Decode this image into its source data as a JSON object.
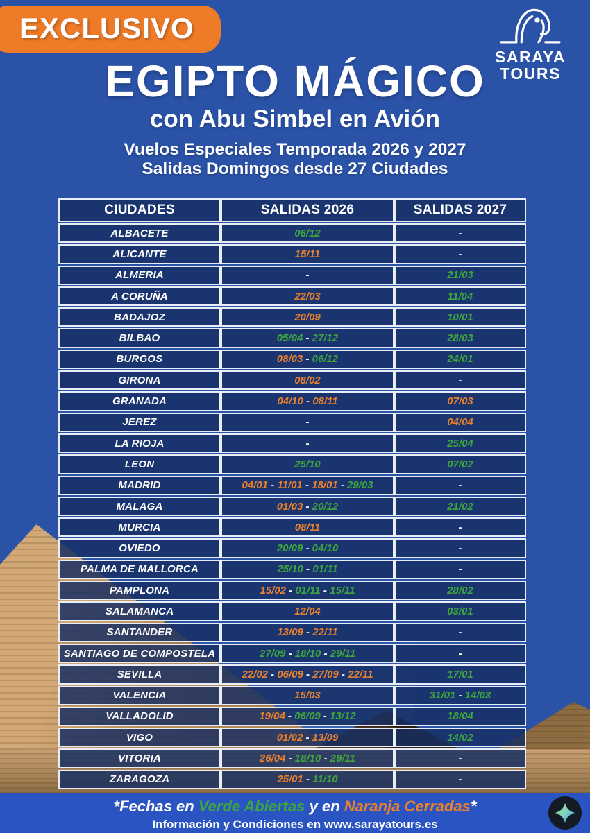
{
  "colors": {
    "background": "#2a52a7",
    "cell": "#17306a",
    "badge_orange": "#ee7b28",
    "green_open": "#3ea63c",
    "orange_closed": "#e9802e",
    "footer_blue": "#2a54c2"
  },
  "badge": {
    "label": "EXCLUSIVO"
  },
  "logo": {
    "name_line1": "SARAYA",
    "name_line2": "TOURS",
    "icon": "horus-falcon-icon"
  },
  "header": {
    "title": "EGIPTO MÁGICO",
    "subtitle": "con Abu Simbel en Avión",
    "info_line1": "Vuelos Especiales Temporada 2026 y 2027",
    "info_line2": "Salidas Domingos desde 27 Ciudades"
  },
  "table": {
    "columns": [
      "CIUDADES",
      "SALIDAS 2026",
      "SALIDAS 2027"
    ],
    "empty_marker": "-",
    "rows": [
      {
        "city": "ALBACETE",
        "s2026": [
          {
            "d": "06/12",
            "c": "green"
          }
        ],
        "s2027": []
      },
      {
        "city": "ALICANTE",
        "s2026": [
          {
            "d": "15/11",
            "c": "orange"
          }
        ],
        "s2027": []
      },
      {
        "city": "ALMERIA",
        "s2026": [],
        "s2027": [
          {
            "d": "21/03",
            "c": "green"
          }
        ]
      },
      {
        "city": "A CORUÑA",
        "s2026": [
          {
            "d": "22/03",
            "c": "orange"
          }
        ],
        "s2027": [
          {
            "d": "11/04",
            "c": "green"
          }
        ]
      },
      {
        "city": "BADAJOZ",
        "s2026": [
          {
            "d": "20/09",
            "c": "orange"
          }
        ],
        "s2027": [
          {
            "d": "10/01",
            "c": "green"
          }
        ]
      },
      {
        "city": "BILBAO",
        "s2026": [
          {
            "d": "05/04",
            "c": "green"
          },
          {
            "d": "27/12",
            "c": "green"
          }
        ],
        "s2027": [
          {
            "d": "28/03",
            "c": "green"
          }
        ]
      },
      {
        "city": "BURGOS",
        "s2026": [
          {
            "d": "08/03",
            "c": "orange"
          },
          {
            "d": "06/12",
            "c": "green"
          }
        ],
        "s2027": [
          {
            "d": "24/01",
            "c": "green"
          }
        ]
      },
      {
        "city": "GIRONA",
        "s2026": [
          {
            "d": "08/02",
            "c": "orange"
          }
        ],
        "s2027": []
      },
      {
        "city": "GRANADA",
        "s2026": [
          {
            "d": "04/10",
            "c": "orange"
          },
          {
            "d": "08/11",
            "c": "orange"
          }
        ],
        "s2027": [
          {
            "d": "07/03",
            "c": "orange"
          }
        ]
      },
      {
        "city": "JEREZ",
        "s2026": [],
        "s2027": [
          {
            "d": "04/04",
            "c": "orange"
          }
        ]
      },
      {
        "city": "LA RIOJA",
        "s2026": [],
        "s2027": [
          {
            "d": "25/04",
            "c": "green"
          }
        ]
      },
      {
        "city": "LEON",
        "s2026": [
          {
            "d": "25/10",
            "c": "green"
          }
        ],
        "s2027": [
          {
            "d": "07/02",
            "c": "green"
          }
        ]
      },
      {
        "city": "MADRID",
        "s2026": [
          {
            "d": "04/01",
            "c": "orange"
          },
          {
            "d": "11/01",
            "c": "orange"
          },
          {
            "d": "18/01",
            "c": "orange"
          },
          {
            "d": "29/03",
            "c": "green"
          }
        ],
        "s2027": []
      },
      {
        "city": "MALAGA",
        "s2026": [
          {
            "d": "01/03",
            "c": "orange"
          },
          {
            "d": "20/12",
            "c": "green"
          }
        ],
        "s2027": [
          {
            "d": "21/02",
            "c": "green"
          }
        ]
      },
      {
        "city": "MURCIA",
        "s2026": [
          {
            "d": "08/11",
            "c": "orange"
          }
        ],
        "s2027": []
      },
      {
        "city": "OVIEDO",
        "s2026": [
          {
            "d": "20/09",
            "c": "green"
          },
          {
            "d": "04/10",
            "c": "green"
          }
        ],
        "s2027": []
      },
      {
        "city": "PALMA DE MALLORCA",
        "s2026": [
          {
            "d": "25/10",
            "c": "green"
          },
          {
            "d": "01/11",
            "c": "green"
          }
        ],
        "s2027": []
      },
      {
        "city": "PAMPLONA",
        "s2026": [
          {
            "d": "15/02",
            "c": "orange"
          },
          {
            "d": "01/11",
            "c": "green"
          },
          {
            "d": "15/11",
            "c": "green"
          }
        ],
        "s2027": [
          {
            "d": "28/02",
            "c": "green"
          }
        ]
      },
      {
        "city": "SALAMANCA",
        "s2026": [
          {
            "d": "12/04",
            "c": "orange"
          }
        ],
        "s2027": [
          {
            "d": "03/01",
            "c": "green"
          }
        ]
      },
      {
        "city": "SANTANDER",
        "s2026": [
          {
            "d": "13/09",
            "c": "orange"
          },
          {
            "d": "22/11",
            "c": "orange"
          }
        ],
        "s2027": []
      },
      {
        "city": "SANTIAGO DE COMPOSTELA",
        "s2026": [
          {
            "d": "27/09",
            "c": "green"
          },
          {
            "d": "18/10",
            "c": "green"
          },
          {
            "d": "29/11",
            "c": "green"
          }
        ],
        "s2027": []
      },
      {
        "city": "SEVILLA",
        "s2026": [
          {
            "d": "22/02",
            "c": "orange"
          },
          {
            "d": "06/09",
            "c": "orange"
          },
          {
            "d": "27/09",
            "c": "orange"
          },
          {
            "d": "22/11",
            "c": "orange"
          }
        ],
        "s2027": [
          {
            "d": "17/01",
            "c": "green"
          }
        ]
      },
      {
        "city": "VALENCIA",
        "s2026": [
          {
            "d": "15/03",
            "c": "orange"
          }
        ],
        "s2027": [
          {
            "d": "31/01",
            "c": "green"
          },
          {
            "d": "14/03",
            "c": "green"
          }
        ]
      },
      {
        "city": "VALLADOLID",
        "s2026": [
          {
            "d": "19/04",
            "c": "orange"
          },
          {
            "d": "06/09",
            "c": "green"
          },
          {
            "d": "13/12",
            "c": "green"
          }
        ],
        "s2027": [
          {
            "d": "18/04",
            "c": "green"
          }
        ]
      },
      {
        "city": "VIGO",
        "s2026": [
          {
            "d": "01/02",
            "c": "orange"
          },
          {
            "d": "13/09",
            "c": "orange"
          }
        ],
        "s2027": [
          {
            "d": "14/02",
            "c": "green"
          }
        ]
      },
      {
        "city": "VITORIA",
        "s2026": [
          {
            "d": "26/04",
            "c": "orange"
          },
          {
            "d": "18/10",
            "c": "green"
          },
          {
            "d": "29/11",
            "c": "green"
          }
        ],
        "s2027": []
      },
      {
        "city": "ZARAGOZA",
        "s2026": [
          {
            "d": "25/01",
            "c": "orange"
          },
          {
            "d": "11/10",
            "c": "green"
          }
        ],
        "s2027": []
      }
    ]
  },
  "legend": {
    "part1": "*Fechas en ",
    "green_label": "Verde Abiertas",
    "part2": " y en ",
    "orange_label": "Naranja Cerradas",
    "part3": "*"
  },
  "footer": {
    "info_prefix": "Información y Condiciones en ",
    "website": "www.sarayatours.es"
  }
}
